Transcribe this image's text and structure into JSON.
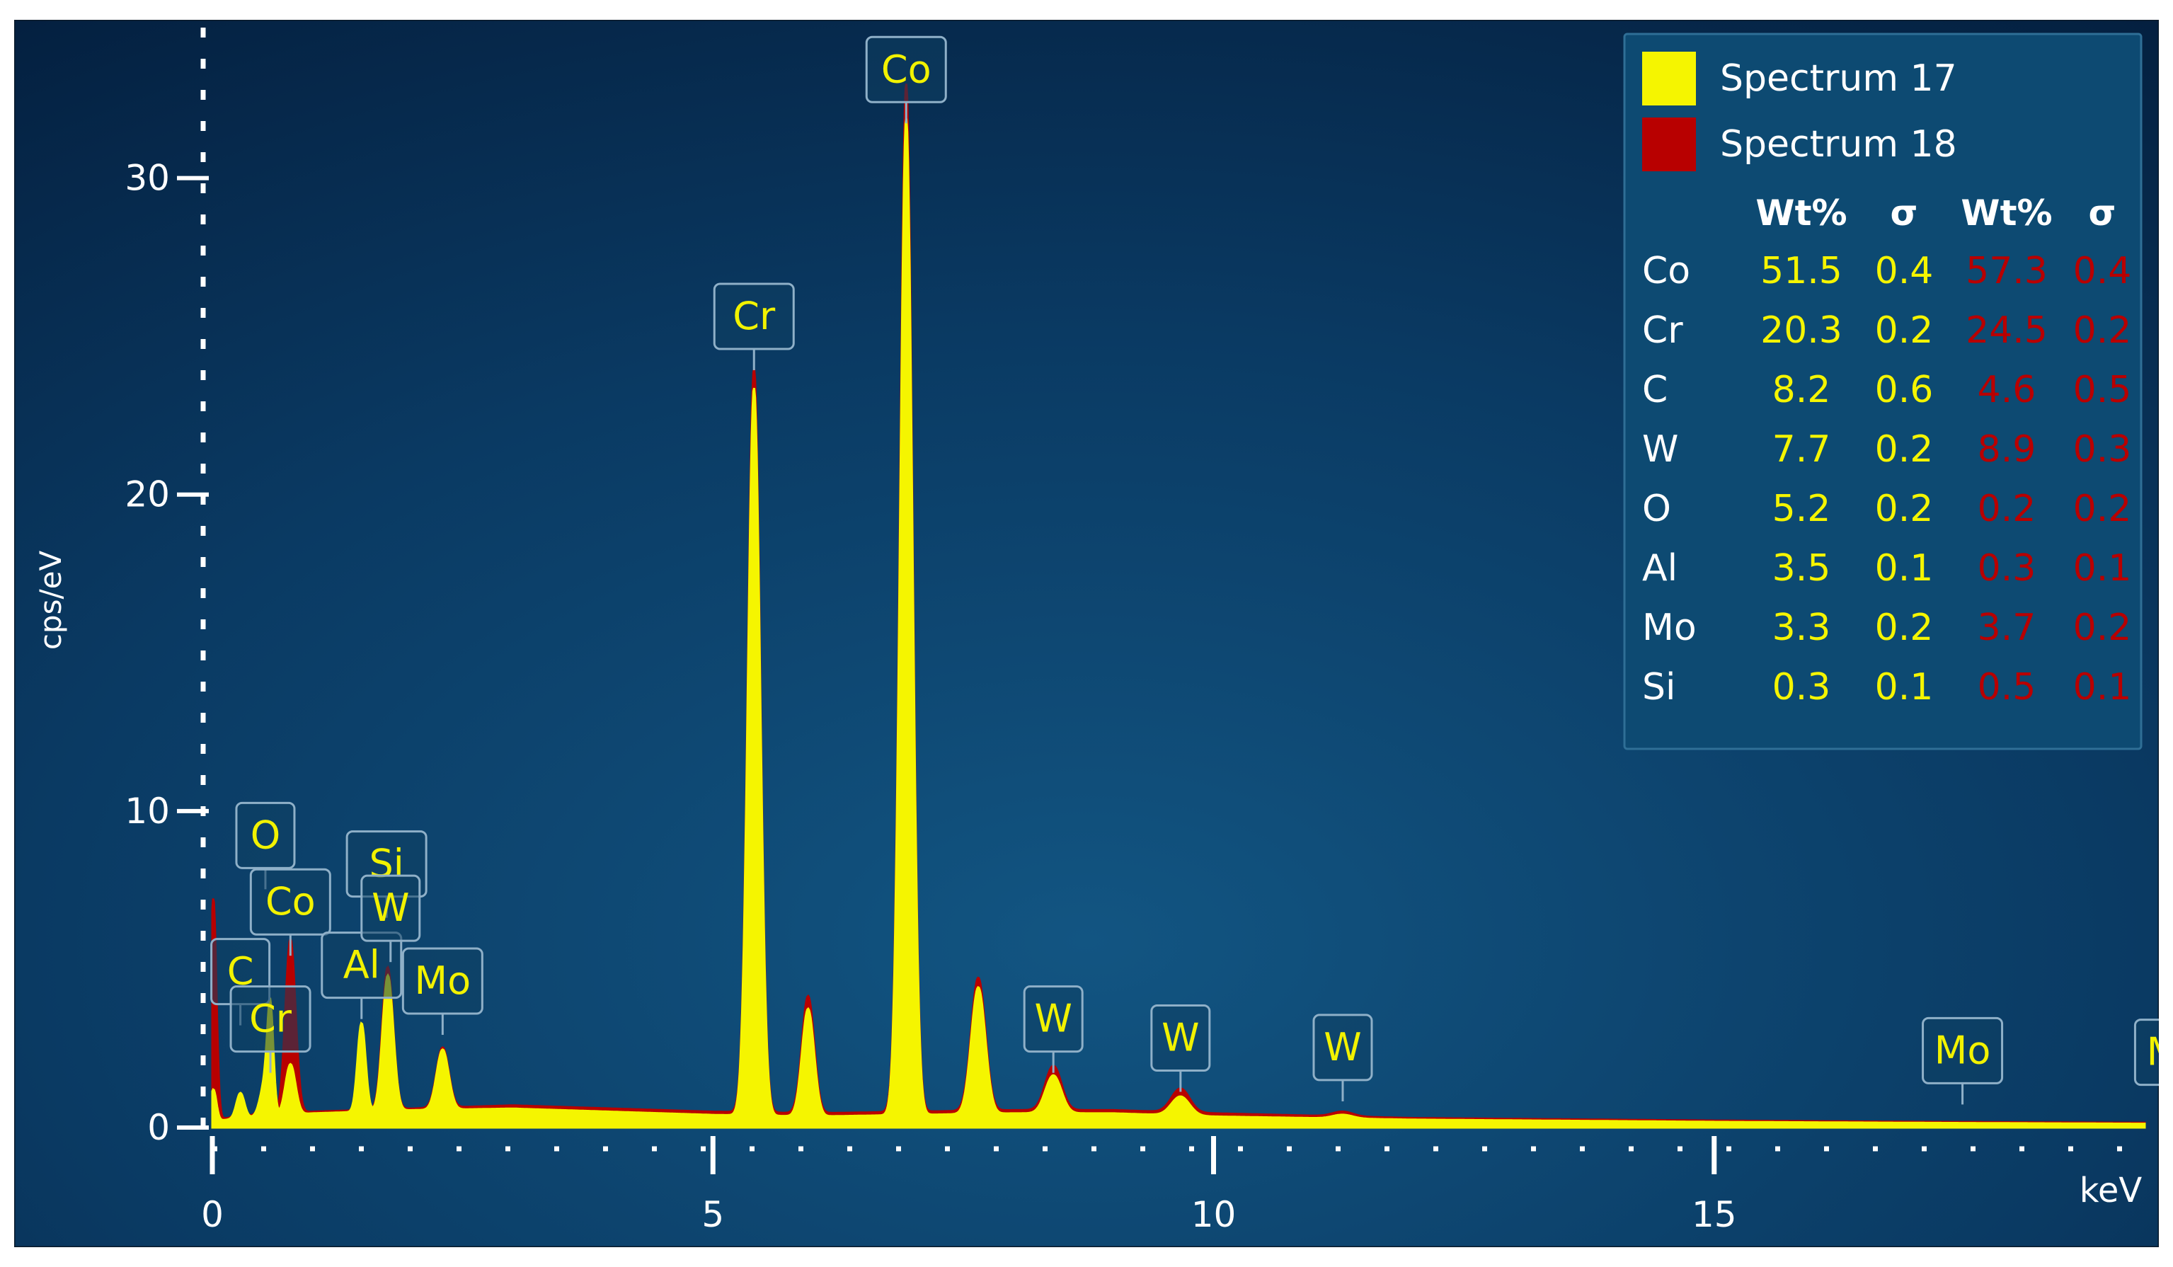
{
  "chart_data": {
    "type": "line",
    "xlabel": "keV",
    "ylabel": "cps/eV",
    "xlim": [
      0,
      19.3
    ],
    "ylim": [
      0,
      35
    ],
    "x_ticks": [
      0,
      5,
      10,
      15
    ],
    "y_ticks": [
      0,
      10,
      20,
      30
    ],
    "grid": false,
    "legend_placement": "top-right",
    "colors": {
      "background_top": "#06223f",
      "background_center": "#114f79",
      "axis": "#ffffff",
      "tick_label": "#ffffff",
      "peak_label_text": "#f2f200",
      "spectrum_17": "#f5f500",
      "spectrum_18": "#b80000"
    },
    "series": [
      {
        "name": "Spectrum 17",
        "color": "#f5f500",
        "baseline": [
          [
            0,
            0.2
          ],
          [
            0.3,
            0.3
          ],
          [
            1,
            0.45
          ],
          [
            2,
            0.55
          ],
          [
            3,
            0.6
          ],
          [
            4,
            0.5
          ],
          [
            5,
            0.4
          ],
          [
            6,
            0.35
          ],
          [
            7,
            0.4
          ],
          [
            8,
            0.45
          ],
          [
            9,
            0.45
          ],
          [
            10,
            0.35
          ],
          [
            12,
            0.25
          ],
          [
            15,
            0.18
          ],
          [
            17,
            0.15
          ],
          [
            19.3,
            0.12
          ]
        ],
        "peaks": [
          {
            "x": 0.01,
            "y": 1.0,
            "w": 0.03
          },
          {
            "x": 0.28,
            "y": 0.8,
            "w": 0.04
          },
          {
            "x": 0.53,
            "y": 1.1,
            "w": 0.05
          },
          {
            "x": 0.58,
            "y": 3.0,
            "w": 0.03
          },
          {
            "x": 0.78,
            "y": 1.6,
            "w": 0.05
          },
          {
            "x": 1.49,
            "y": 2.8,
            "w": 0.04
          },
          {
            "x": 1.74,
            "y": 3.0,
            "w": 0.05
          },
          {
            "x": 1.78,
            "y": 1.6,
            "w": 0.05
          },
          {
            "x": 2.3,
            "y": 1.9,
            "w": 0.06
          },
          {
            "x": 5.41,
            "y": 23.0,
            "w": 0.06
          },
          {
            "x": 5.95,
            "y": 3.4,
            "w": 0.06
          },
          {
            "x": 6.93,
            "y": 31.5,
            "w": 0.06
          },
          {
            "x": 7.65,
            "y": 4.0,
            "w": 0.07
          },
          {
            "x": 8.4,
            "y": 1.2,
            "w": 0.08
          },
          {
            "x": 9.67,
            "y": 0.6,
            "w": 0.09
          },
          {
            "x": 11.29,
            "y": 0.12,
            "w": 0.1
          }
        ]
      },
      {
        "name": "Spectrum 18",
        "color": "#b80000",
        "baseline": [
          [
            0,
            0.25
          ],
          [
            0.3,
            0.35
          ],
          [
            1,
            0.5
          ],
          [
            2,
            0.6
          ],
          [
            3,
            0.7
          ],
          [
            4,
            0.6
          ],
          [
            5,
            0.5
          ],
          [
            6,
            0.45
          ],
          [
            7,
            0.5
          ],
          [
            8,
            0.55
          ],
          [
            9,
            0.55
          ],
          [
            10,
            0.45
          ],
          [
            12,
            0.3
          ],
          [
            15,
            0.22
          ],
          [
            17,
            0.18
          ],
          [
            19.3,
            0.15
          ]
        ],
        "peaks": [
          {
            "x": 0.01,
            "y": 7.0,
            "w": 0.03
          },
          {
            "x": 0.28,
            "y": 0.4,
            "w": 0.04
          },
          {
            "x": 0.53,
            "y": 0.8,
            "w": 0.05
          },
          {
            "x": 0.58,
            "y": 1.0,
            "w": 0.03
          },
          {
            "x": 0.78,
            "y": 5.5,
            "w": 0.05
          },
          {
            "x": 1.49,
            "y": 0.3,
            "w": 0.04
          },
          {
            "x": 1.74,
            "y": 3.3,
            "w": 0.05
          },
          {
            "x": 1.78,
            "y": 1.5,
            "w": 0.05
          },
          {
            "x": 2.3,
            "y": 1.9,
            "w": 0.06
          },
          {
            "x": 5.41,
            "y": 23.5,
            "w": 0.06
          },
          {
            "x": 5.95,
            "y": 3.7,
            "w": 0.06
          },
          {
            "x": 6.93,
            "y": 32.5,
            "w": 0.06
          },
          {
            "x": 7.65,
            "y": 4.2,
            "w": 0.07
          },
          {
            "x": 8.4,
            "y": 1.4,
            "w": 0.08
          },
          {
            "x": 9.67,
            "y": 0.75,
            "w": 0.09
          },
          {
            "x": 11.29,
            "y": 0.15,
            "w": 0.1
          }
        ]
      }
    ],
    "peak_labels": [
      {
        "text": "C",
        "x": 0.28,
        "y": 3.9
      },
      {
        "text": "O",
        "x": 0.53,
        "y": 8.2
      },
      {
        "text": "Co",
        "x": 0.78,
        "y": 6.1
      },
      {
        "text": "Cr",
        "x": 0.58,
        "y": 2.4
      },
      {
        "text": "Al",
        "x": 1.49,
        "y": 4.1
      },
      {
        "text": "Si",
        "x": 1.74,
        "y": 7.3
      },
      {
        "text": "W",
        "x": 1.78,
        "y": 5.9
      },
      {
        "text": "Mo",
        "x": 2.3,
        "y": 3.6
      },
      {
        "text": "Cr",
        "x": 5.41,
        "y": 24.6
      },
      {
        "text": "Co",
        "x": 6.93,
        "y": 32.4
      },
      {
        "text": "W",
        "x": 8.4,
        "y": 2.4
      },
      {
        "text": "W",
        "x": 9.67,
        "y": 1.8
      },
      {
        "text": "W",
        "x": 11.29,
        "y": 1.5
      },
      {
        "text": "Mo",
        "x": 17.48,
        "y": 1.4
      },
      {
        "text": "Mo",
        "x": 19.6,
        "y": 1.35
      }
    ],
    "legend": {
      "entries": [
        {
          "name": "Spectrum 17",
          "color": "#f5f500"
        },
        {
          "name": "Spectrum 18",
          "color": "#b80000"
        }
      ],
      "table_headers": [
        "Wt%",
        "σ",
        "Wt%",
        "σ"
      ],
      "rows": [
        {
          "element": "Co",
          "s17_wt": "51.5",
          "s17_sigma": "0.4",
          "s18_wt": "57.3",
          "s18_sigma": "0.4"
        },
        {
          "element": "Cr",
          "s17_wt": "20.3",
          "s17_sigma": "0.2",
          "s18_wt": "24.5",
          "s18_sigma": "0.2"
        },
        {
          "element": "C",
          "s17_wt": "8.2",
          "s17_sigma": "0.6",
          "s18_wt": "4.6",
          "s18_sigma": "0.5"
        },
        {
          "element": "W",
          "s17_wt": "7.7",
          "s17_sigma": "0.2",
          "s18_wt": "8.9",
          "s18_sigma": "0.3"
        },
        {
          "element": "O",
          "s17_wt": "5.2",
          "s17_sigma": "0.2",
          "s18_wt": "0.2",
          "s18_sigma": "0.2"
        },
        {
          "element": "Al",
          "s17_wt": "3.5",
          "s17_sigma": "0.1",
          "s18_wt": "0.3",
          "s18_sigma": "0.1"
        },
        {
          "element": "Mo",
          "s17_wt": "3.3",
          "s17_sigma": "0.2",
          "s18_wt": "3.7",
          "s18_sigma": "0.2"
        },
        {
          "element": "Si",
          "s17_wt": "0.3",
          "s17_sigma": "0.1",
          "s18_wt": "0.5",
          "s18_sigma": "0.1"
        }
      ]
    }
  }
}
